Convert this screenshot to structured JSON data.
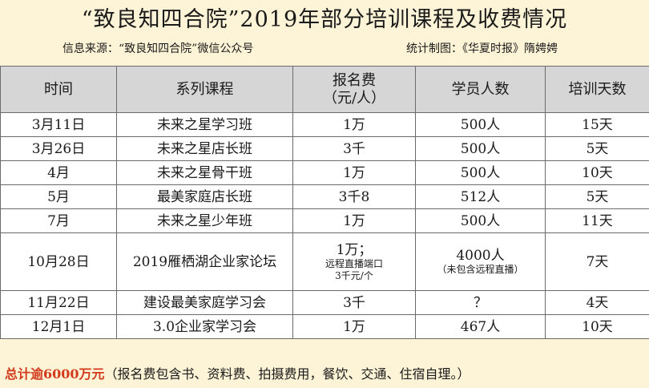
{
  "title": "“致良知四合院”2019年部分培训课程及收费情况",
  "source_left": "信息来源：“致良知四合院”微信公众号",
  "source_right": "统计制图：《华夏时报》隋娉娉",
  "table": {
    "headers": [
      "时间",
      "系列课程",
      "报名费（元/人）",
      "学员人数",
      "培训天数"
    ],
    "header_fee_line1": "报名费",
    "header_fee_line2": "（元/人）",
    "rows": [
      {
        "time": "3月11日",
        "course": "未来之星学习班",
        "fee": "1万",
        "students": "500人",
        "days": "15天"
      },
      {
        "time": "3月26日",
        "course": "未来之星店长班",
        "fee": "3千",
        "students": "500人",
        "days": "5天"
      },
      {
        "time": "4月",
        "course": "未来之星骨干班",
        "fee": "1万",
        "students": "500人",
        "days": "10天"
      },
      {
        "time": "5月",
        "course": "最美家庭店长班",
        "fee": "3千8",
        "students": "512人",
        "days": "5天"
      },
      {
        "time": "7月",
        "course": "未来之星少年班",
        "fee": "1万",
        "students": "500人",
        "days": "11天"
      },
      {
        "time": "10月28日",
        "course": "2019雁栖湖企业家论坛",
        "fee": "1万；",
        "fee_note1": "远程直播端口",
        "fee_note2": "3千元/个",
        "students": "4000人",
        "students_note": "（未包含远程直播）",
        "days": "7天"
      },
      {
        "time": "11月22日",
        "course": "建设最美家庭学习会",
        "fee": "3千",
        "students": "？",
        "days": "4天"
      },
      {
        "time": "12月1日",
        "course": "3.0企业家学习会",
        "fee": "1万",
        "students": "467人",
        "days": "10天"
      }
    ]
  },
  "footer": {
    "highlight": "总计逾6000万元",
    "note": "（报名费包含书、资料费、拍摄费用，餐饮、交通、住宿自理。）"
  },
  "colors": {
    "background": "#fdf3d6",
    "header_bg": "#d6d6d6",
    "highlight": "#d23a1c"
  }
}
